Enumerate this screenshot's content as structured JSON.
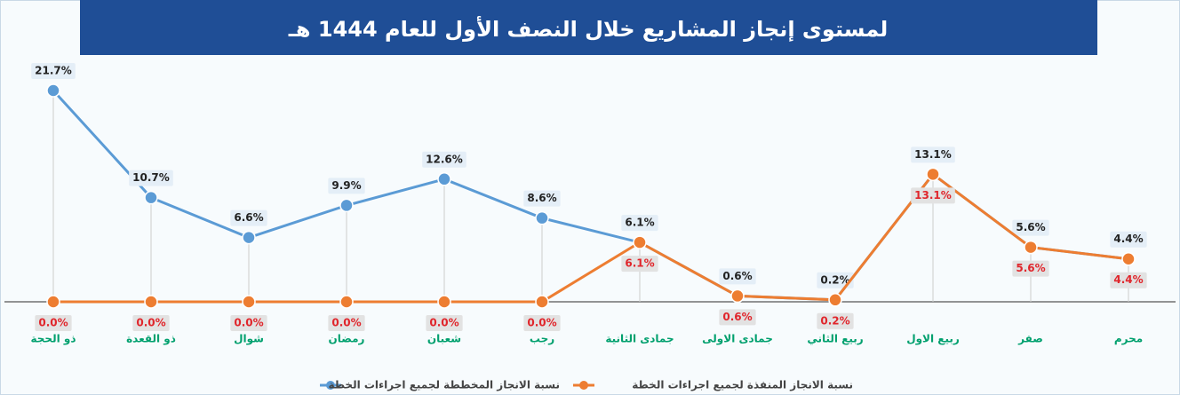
{
  "chart_data": {
    "type": "line",
    "title": "لمستوى إنجاز المشاريع خلال النصف الأول للعام 1444 هـ",
    "categories": [
      "ذو الحجة",
      "ذو القعدة",
      "شوال",
      "رمضان",
      "شعبان",
      "رجب",
      "جمادى الثانية",
      "جمادى الاولى",
      "ربيع الثاني",
      "ربيع الاول",
      "صفر",
      "محرم"
    ],
    "series": [
      {
        "name": "نسبة الانجاز المخططة لجميع اجراءات الخطة",
        "color": "#5b9bd5",
        "values": [
          21.7,
          10.7,
          6.6,
          9.9,
          12.6,
          8.6,
          6.1,
          0.6,
          0.2,
          13.1,
          5.6,
          4.4
        ],
        "value_labels": [
          "21.7%",
          "10.7%",
          "6.6%",
          "9.9%",
          "12.6%",
          "8.6%",
          "6.1%",
          "0.6%",
          "0.2%",
          "13.1%",
          "5.6%",
          "4.4%"
        ]
      },
      {
        "name": "نسبة الانجاز المنفذة لجميع اجراءات الخطة",
        "color": "#ed7d31",
        "values": [
          0,
          0,
          0,
          0,
          0,
          0,
          6.1,
          0.6,
          0.2,
          13.1,
          5.6,
          4.4
        ],
        "value_labels": [
          "0.0%",
          "0.0%",
          "0.0%",
          "0.0%",
          "0.0%",
          "0.0%",
          "6.1%",
          "0.6%",
          "0.2%",
          "13.1%",
          "5.6%",
          "4.4%"
        ]
      }
    ]
  }
}
